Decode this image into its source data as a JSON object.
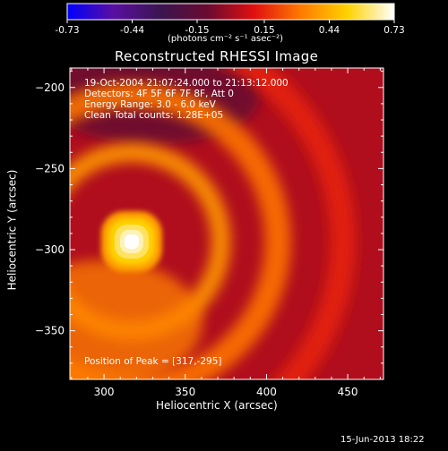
{
  "colorbar": {
    "ticks": [
      "-0.73",
      "-0.44",
      "-0.15",
      "0.15",
      "0.44",
      "0.73"
    ],
    "tick_values": [
      -0.73,
      -0.44,
      -0.15,
      0.15,
      0.44,
      0.73
    ],
    "range": [
      -0.73,
      0.73
    ],
    "unit_label": "(photons cm⁻² s⁻¹ asec⁻²)",
    "colors": [
      "#0000ff",
      "#5a0fa0",
      "#3a1550",
      "#6a0a30",
      "#e01010",
      "#ff7a00",
      "#ffd200",
      "#ffffff"
    ]
  },
  "title": "Reconstructed RHESSI Image",
  "info_lines": [
    "19-Oct-2004 21:07:24.000  to 21:13:12.000",
    "Detectors: 4F 5F 6F 7F 8F, Att 0",
    "Energy Range: 3.0 - 6.0 keV",
    "Clean     Total counts: 1.28E+05"
  ],
  "peak_text": "Position of Peak = [317,-295]",
  "date_stamp": "15-Jun-2013 18:22",
  "chart_data": {
    "type": "heatmap",
    "title": "Reconstructed RHESSI Image",
    "xlabel": "Heliocentric X (arcsec)",
    "ylabel": "Heliocentric Y (arcsec)",
    "xlim": [
      279,
      472
    ],
    "ylim": [
      -380,
      -188
    ],
    "x_ticks": [
      300,
      350,
      400,
      450
    ],
    "y_ticks": [
      -200,
      -250,
      -300,
      -350
    ],
    "x_tick_labels": [
      "300",
      "350",
      "400",
      "450"
    ],
    "y_tick_labels": [
      "−200",
      "−250",
      "−300",
      "−350"
    ],
    "peak": {
      "x": 317,
      "y": -295,
      "value": 0.73
    },
    "background_value": 0.02,
    "ring_center": {
      "x": 317,
      "y": -295
    },
    "rings": [
      {
        "radius": 55,
        "width": 12,
        "value": 0.38
      },
      {
        "radius": 90,
        "width": 16,
        "value": 0.3
      },
      {
        "radius": 130,
        "width": 16,
        "value": 0.14
      }
    ],
    "negative_region": {
      "x": 330,
      "y": -205,
      "value": -0.12
    }
  }
}
